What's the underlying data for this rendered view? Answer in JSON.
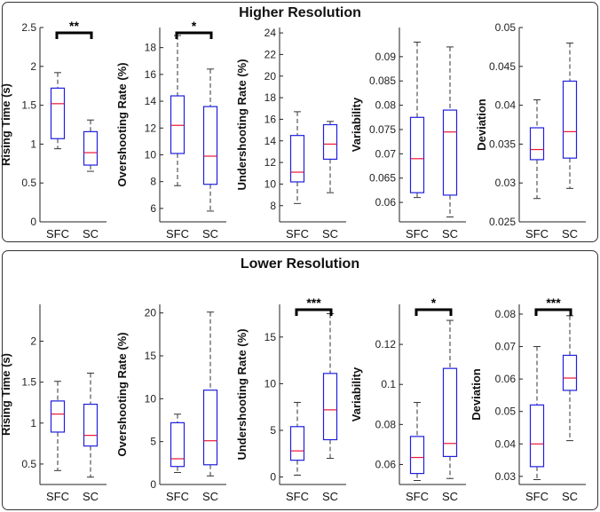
{
  "panels": [
    {
      "title": "Higher Resolution"
    },
    {
      "title": "Lower Resolution"
    }
  ],
  "colors": {
    "box": "#1f1fe0",
    "median": "#e8173a",
    "whisker": "#333333",
    "sig": "#000000"
  },
  "chart_data": [
    {
      "panel": "Higher Resolution",
      "type": "box",
      "ylabel": "Rising Time (s)",
      "categories": [
        "SFC",
        "SC"
      ],
      "ylim": [
        0,
        2.5
      ],
      "yticks": [
        0,
        0.5,
        1,
        1.5,
        2,
        2.5
      ],
      "boxes": [
        {
          "min": 0.94,
          "q1": 1.07,
          "median": 1.52,
          "q3": 1.72,
          "max": 1.92
        },
        {
          "min": 0.65,
          "q1": 0.73,
          "median": 0.89,
          "q3": 1.16,
          "max": 1.31
        }
      ],
      "significance": "**"
    },
    {
      "panel": "Higher Resolution",
      "type": "box",
      "ylabel": "Overshooting Rate (%)",
      "categories": [
        "SFC",
        "SC"
      ],
      "ylim": [
        5,
        19.5
      ],
      "yticks": [
        6,
        8,
        10,
        12,
        14,
        16,
        18
      ],
      "boxes": [
        {
          "min": 7.7,
          "q1": 10.1,
          "median": 12.2,
          "q3": 14.4,
          "max": 18.9
        },
        {
          "min": 5.8,
          "q1": 7.8,
          "median": 9.9,
          "q3": 13.6,
          "max": 16.4
        }
      ],
      "significance": "*"
    },
    {
      "panel": "Higher Resolution",
      "type": "box",
      "ylabel": "Undershooting Rate (%)",
      "categories": [
        "SFC",
        "SC"
      ],
      "ylim": [
        6.5,
        24.5
      ],
      "yticks": [
        8,
        10,
        12,
        14,
        16,
        18,
        20,
        22,
        24
      ],
      "boxes": [
        {
          "min": 8.2,
          "q1": 10.2,
          "median": 11.1,
          "q3": 14.5,
          "max": 16.7
        },
        {
          "min": 9.2,
          "q1": 12.3,
          "median": 13.7,
          "q3": 15.5,
          "max": 15.8
        }
      ],
      "significance": ""
    },
    {
      "panel": "Higher Resolution",
      "type": "box",
      "ylabel": "Variability",
      "categories": [
        "SFC",
        "SC"
      ],
      "ylim": [
        0.056,
        0.096
      ],
      "yticks": [
        0.06,
        0.065,
        0.07,
        0.075,
        0.08,
        0.085,
        0.09
      ],
      "boxes": [
        {
          "min": 0.061,
          "q1": 0.062,
          "median": 0.069,
          "q3": 0.0775,
          "max": 0.093
        },
        {
          "min": 0.057,
          "q1": 0.0615,
          "median": 0.0745,
          "q3": 0.079,
          "max": 0.092
        }
      ],
      "significance": ""
    },
    {
      "panel": "Higher Resolution",
      "type": "box",
      "ylabel": "Deviation",
      "categories": [
        "SFC",
        "SC"
      ],
      "ylim": [
        0.025,
        0.05
      ],
      "yticks": [
        0.025,
        0.03,
        0.035,
        0.04,
        0.045,
        0.05
      ],
      "boxes": [
        {
          "min": 0.028,
          "q1": 0.033,
          "median": 0.0343,
          "q3": 0.0371,
          "max": 0.0407
        },
        {
          "min": 0.0293,
          "q1": 0.0332,
          "median": 0.0366,
          "q3": 0.0431,
          "max": 0.048
        }
      ],
      "significance": ""
    },
    {
      "panel": "Lower Resolution",
      "type": "box",
      "ylabel": "Rising Time (s)",
      "categories": [
        "SFC",
        "SC"
      ],
      "ylim": [
        0.25,
        2.45
      ],
      "yticks": [
        0.5,
        1,
        1.5,
        2
      ],
      "boxes": [
        {
          "min": 0.42,
          "q1": 0.89,
          "median": 1.11,
          "q3": 1.27,
          "max": 1.51
        },
        {
          "min": 0.34,
          "q1": 0.72,
          "median": 0.85,
          "q3": 1.23,
          "max": 1.61
        }
      ],
      "significance": ""
    },
    {
      "panel": "Lower Resolution",
      "type": "box",
      "ylabel": "Overshooting Rate (%)",
      "categories": [
        "SFC",
        "SC"
      ],
      "ylim": [
        0,
        21
      ],
      "yticks": [
        0,
        5,
        10,
        15,
        20
      ],
      "boxes": [
        {
          "min": 1.4,
          "q1": 2.1,
          "median": 3.0,
          "q3": 7.2,
          "max": 8.2
        },
        {
          "min": 1.0,
          "q1": 2.3,
          "median": 5.1,
          "q3": 11.0,
          "max": 20.1
        }
      ],
      "significance": ""
    },
    {
      "panel": "Lower Resolution",
      "type": "box",
      "ylabel": "Undershooting Rate (%)",
      "categories": [
        "SFC",
        "SC"
      ],
      "ylim": [
        -0.8,
        18.5
      ],
      "yticks": [
        0,
        5,
        10,
        15
      ],
      "boxes": [
        {
          "min": 0.2,
          "q1": 1.8,
          "median": 2.8,
          "q3": 5.4,
          "max": 8.0
        },
        {
          "min": 2.0,
          "q1": 4.0,
          "median": 7.2,
          "q3": 11.1,
          "max": 17.5
        }
      ],
      "significance": "***"
    },
    {
      "panel": "Lower Resolution",
      "type": "box",
      "ylabel": "Variability",
      "categories": [
        "SFC",
        "SC"
      ],
      "ylim": [
        0.05,
        0.14
      ],
      "yticks": [
        0.06,
        0.08,
        0.1,
        0.12
      ],
      "boxes": [
        {
          "min": 0.052,
          "q1": 0.0555,
          "median": 0.0635,
          "q3": 0.074,
          "max": 0.091
        },
        {
          "min": 0.053,
          "q1": 0.064,
          "median": 0.0705,
          "q3": 0.108,
          "max": 0.132
        }
      ],
      "significance": "*"
    },
    {
      "panel": "Lower Resolution",
      "type": "box",
      "ylabel": "Deviation",
      "categories": [
        "SFC",
        "SC"
      ],
      "ylim": [
        0.0275,
        0.083
      ],
      "yticks": [
        0.03,
        0.04,
        0.05,
        0.06,
        0.07,
        0.08
      ],
      "boxes": [
        {
          "min": 0.029,
          "q1": 0.033,
          "median": 0.04,
          "q3": 0.052,
          "max": 0.07
        },
        {
          "min": 0.041,
          "q1": 0.0565,
          "median": 0.0603,
          "q3": 0.0673,
          "max": 0.0795
        }
      ],
      "significance": "***"
    }
  ]
}
